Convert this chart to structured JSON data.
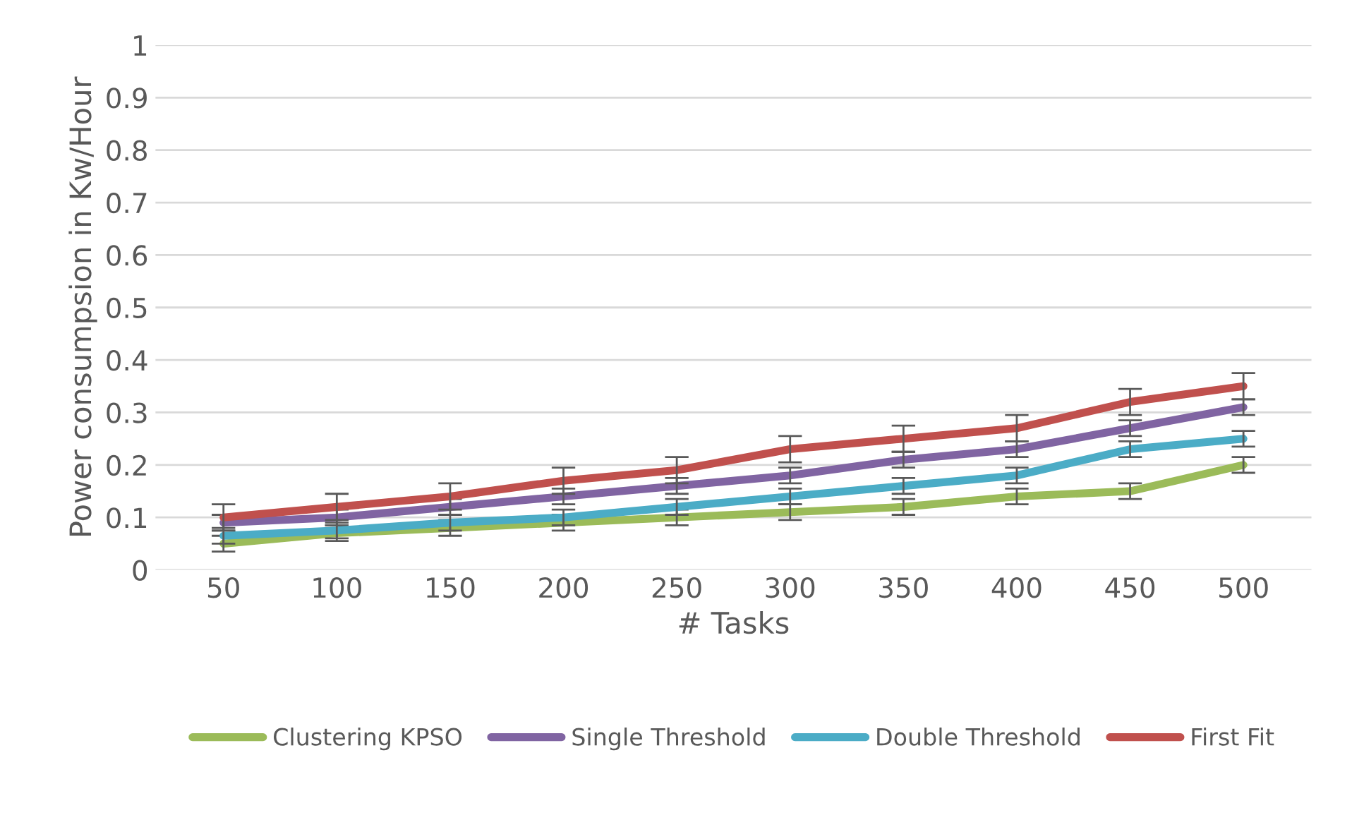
{
  "chart_data": {
    "type": "line",
    "xlabel": "# Tasks",
    "ylabel": "Power consumpsion in Kw/Hour",
    "categories": [
      "50",
      "100",
      "150",
      "200",
      "250",
      "300",
      "350",
      "400",
      "450",
      "500"
    ],
    "series": [
      {
        "name": "Clustering KPSO",
        "color": "#9bbb59",
        "values": [
          0.05,
          0.07,
          0.08,
          0.09,
          0.1,
          0.11,
          0.12,
          0.14,
          0.15,
          0.2
        ],
        "errors": [
          0.015,
          0.015,
          0.015,
          0.015,
          0.015,
          0.015,
          0.015,
          0.015,
          0.015,
          0.015
        ]
      },
      {
        "name": "Single Threshold",
        "color": "#8064a2",
        "values": [
          0.09,
          0.1,
          0.12,
          0.14,
          0.16,
          0.18,
          0.21,
          0.23,
          0.27,
          0.31
        ],
        "errors": [
          0.015,
          0.015,
          0.015,
          0.015,
          0.015,
          0.015,
          0.015,
          0.015,
          0.015,
          0.015
        ]
      },
      {
        "name": "Double Threshold",
        "color": "#4bacc6",
        "values": [
          0.065,
          0.075,
          0.09,
          0.1,
          0.12,
          0.14,
          0.16,
          0.18,
          0.23,
          0.25
        ],
        "errors": [
          0.015,
          0.015,
          0.015,
          0.015,
          0.015,
          0.015,
          0.015,
          0.015,
          0.015,
          0.015
        ]
      },
      {
        "name": "First Fit",
        "color": "#c0504d",
        "values": [
          0.1,
          0.12,
          0.14,
          0.17,
          0.19,
          0.23,
          0.25,
          0.27,
          0.32,
          0.35
        ],
        "errors": [
          0.025,
          0.025,
          0.025,
          0.025,
          0.025,
          0.025,
          0.025,
          0.025,
          0.025,
          0.025
        ]
      }
    ],
    "ylim": [
      0,
      1
    ],
    "yticks": [
      0,
      0.1,
      0.2,
      0.3,
      0.4,
      0.5,
      0.6,
      0.7,
      0.8,
      0.9,
      1
    ],
    "grid": "y",
    "legend": "bottom",
    "marker": "none",
    "line_style": "solid"
  }
}
